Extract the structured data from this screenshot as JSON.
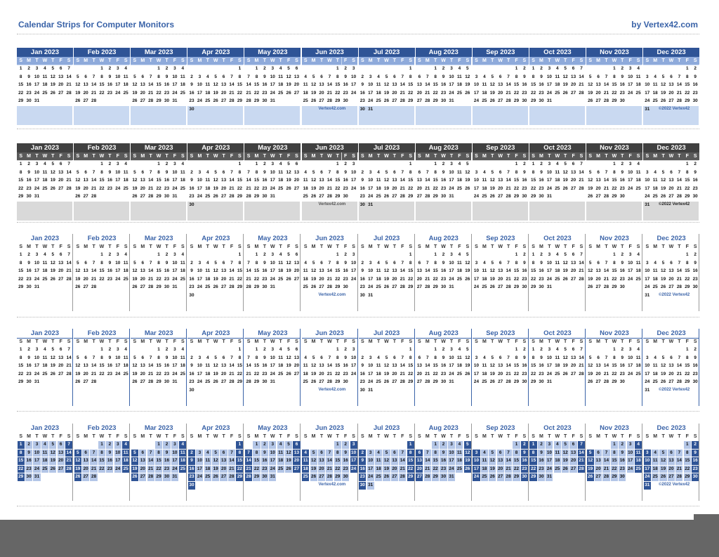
{
  "header": {
    "title": "Calendar Strips for Computer Monitors",
    "by": "by Vertex42.com"
  },
  "dow": [
    "S",
    "M",
    "T",
    "W",
    "T",
    "F",
    "S"
  ],
  "months": [
    {
      "name": "Jan 2023",
      "start": 0,
      "days": 31
    },
    {
      "name": "Feb 2023",
      "start": 3,
      "days": 28
    },
    {
      "name": "Mar 2023",
      "start": 3,
      "days": 31
    },
    {
      "name": "Apr 2023",
      "start": 6,
      "days": 30
    },
    {
      "name": "May 2023",
      "start": 1,
      "days": 31
    },
    {
      "name": "Jun 2023",
      "start": 4,
      "days": 30
    },
    {
      "name": "Jul 2023",
      "start": 6,
      "days": 31
    },
    {
      "name": "Aug 2023",
      "start": 2,
      "days": 31
    },
    {
      "name": "Sep 2023",
      "start": 5,
      "days": 30
    },
    {
      "name": "Oct 2023",
      "start": 0,
      "days": 31
    },
    {
      "name": "Nov 2023",
      "start": 3,
      "days": 30
    },
    {
      "name": "Dec 2023",
      "start": 5,
      "days": 31
    }
  ],
  "strips": [
    {
      "style": "blue",
      "footer_credit": "Vertex42.com",
      "footer_copyright": "©2022 Vertex42"
    },
    {
      "style": "gray",
      "footer_credit": "Vertex42.com",
      "footer_copyright": "©2022 Vertex42"
    },
    {
      "style": "plain",
      "footer_credit": "Vertex42.com",
      "footer_copyright": "©2022 Vertex42"
    },
    {
      "style": "line",
      "footer_credit": "Vertex42.com",
      "footer_copyright": "©2022 Vertex42"
    },
    {
      "style": "boxes",
      "footer_credit": "Vertex42.com",
      "footer_copyright": "©2022 Vertex42"
    }
  ],
  "colors": {
    "blue_header": "#2f5496",
    "blue_light": "#c9d9f1",
    "blue_dow": "#8eaadb",
    "gray_header": "#404040",
    "gray_light": "#d9d9d9",
    "text_blue": "#3a63a8",
    "box_light": "#b4c6e7",
    "box_dark": "#2f5496",
    "bottom_bar": "#666666"
  }
}
